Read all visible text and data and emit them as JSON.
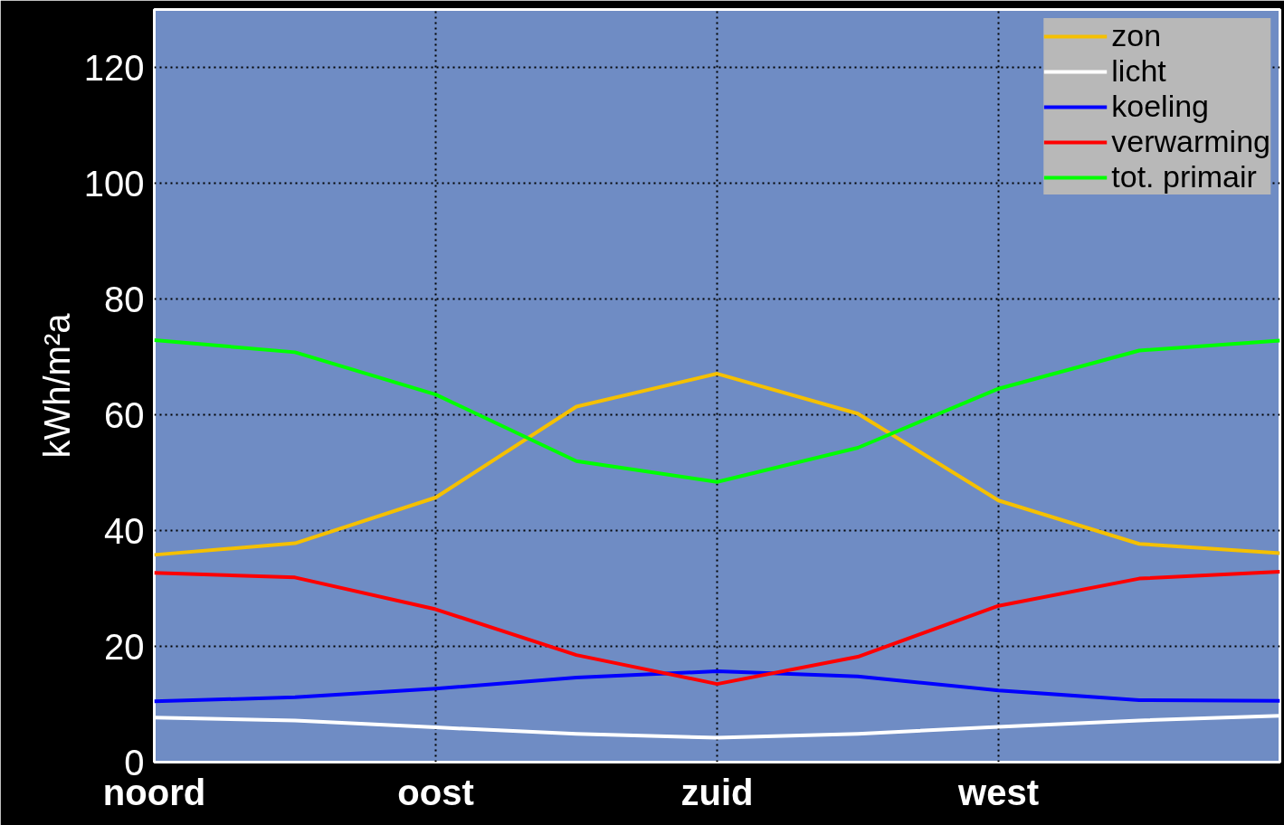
{
  "chart_data": {
    "type": "line",
    "ylabel": "kWh/m²a",
    "categories": [
      "noord",
      null,
      "oost",
      null,
      "zuid",
      null,
      "west",
      null,
      null
    ],
    "ylim": [
      0,
      130
    ],
    "yticks": [
      0,
      20,
      40,
      60,
      80,
      100,
      120
    ],
    "grid": true,
    "legend": "top right",
    "line_style": "solid",
    "series": [
      {
        "name": "zon",
        "color": "#f5c000",
        "values": [
          35.8,
          37.8,
          45.7,
          61.4,
          67.1,
          60.2,
          45.2,
          37.7,
          36.1
        ]
      },
      {
        "name": "licht",
        "color": "#ffffff",
        "values": [
          7.7,
          7.2,
          6,
          4.9,
          4.2,
          4.9,
          6.1,
          7.2,
          8
        ]
      },
      {
        "name": "koeling",
        "color": "#0000ff",
        "values": [
          10.5,
          11.2,
          12.7,
          14.6,
          15.7,
          14.8,
          12.4,
          10.7,
          10.6
        ]
      },
      {
        "name": "verwarming",
        "color": "#ff0000",
        "values": [
          32.7,
          31.9,
          26.4,
          18.5,
          13.5,
          18.2,
          27,
          31.7,
          32.9
        ]
      },
      {
        "name": "tot. primair",
        "color": "#00ff00",
        "values": [
          72.9,
          70.8,
          63.5,
          52,
          48.4,
          54.3,
          64.5,
          71.1,
          72.8
        ]
      }
    ]
  }
}
